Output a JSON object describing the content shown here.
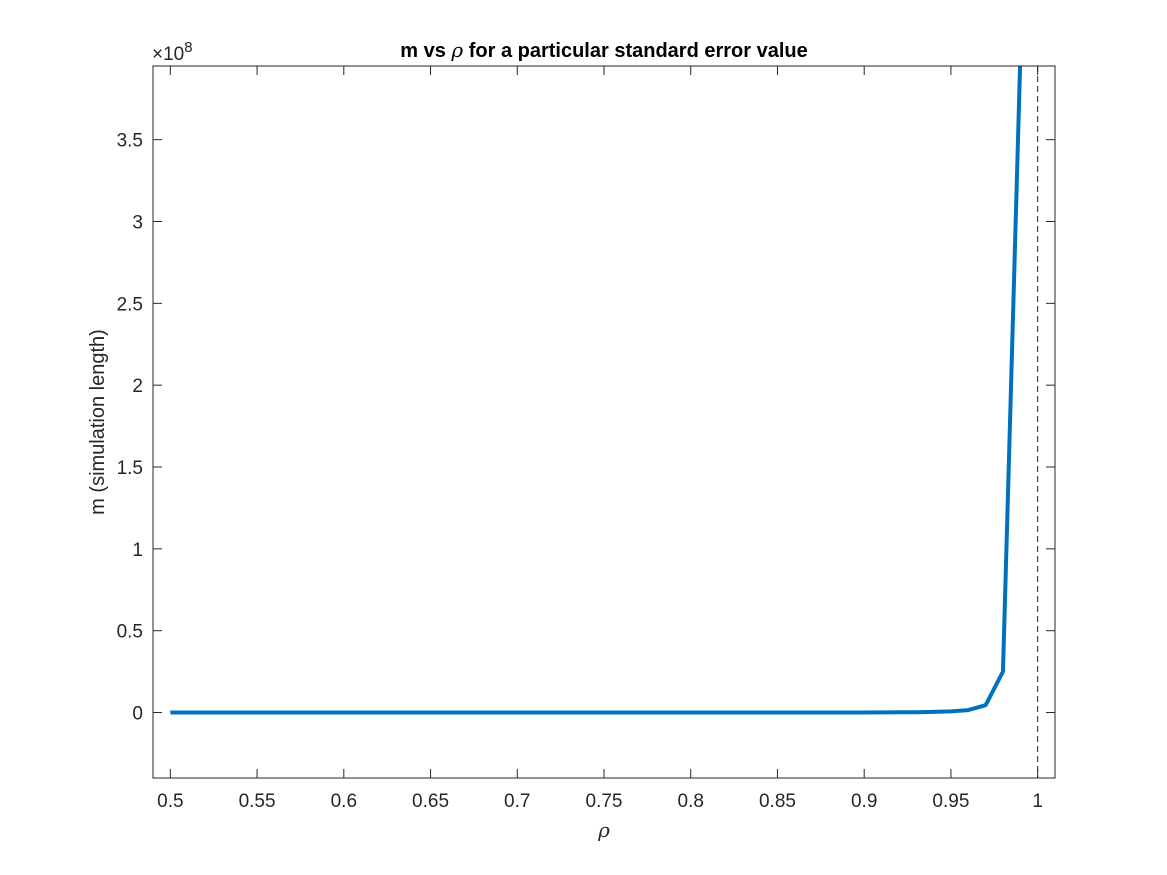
{
  "chart_data": {
    "type": "line",
    "title_pre": "m vs ",
    "title_symbol": "ρ",
    "title_post": " for a particular standard error value",
    "xlabel": "ρ",
    "ylabel": "m (simulation length)",
    "y_exponent_prefix": "×10",
    "y_exponent_power": "8",
    "xlim": [
      0.49,
      1.01
    ],
    "ylim": [
      -0.4,
      3.95
    ],
    "y_scale": 100000000,
    "x_ticks": [
      0.5,
      0.55,
      0.6,
      0.65,
      0.7,
      0.75,
      0.8,
      0.85,
      0.9,
      0.95,
      1
    ],
    "x_tick_labels": [
      "0.5",
      "0.55",
      "0.6",
      "0.65",
      "0.7",
      "0.75",
      "0.8",
      "0.85",
      "0.9",
      "0.95",
      "1"
    ],
    "y_ticks": [
      0,
      0.5,
      1,
      1.5,
      2,
      2.5,
      3,
      3.5
    ],
    "y_tick_labels": [
      "0",
      "0.5",
      "1",
      "1.5",
      "2",
      "2.5",
      "3",
      "3.5"
    ],
    "grid": false,
    "series": [
      {
        "color": "#0072BD",
        "x": [
          0.5,
          0.6,
          0.7,
          0.8,
          0.85,
          0.88,
          0.9,
          0.91,
          0.92,
          0.93,
          0.94,
          0.95,
          0.96,
          0.97,
          0.98,
          0.99
        ],
        "y": [
          0,
          0,
          0,
          0,
          0,
          0,
          0.0005,
          0.001,
          0.0015,
          0.002,
          0.004,
          0.007,
          0.015,
          0.045,
          0.25,
          4.0
        ]
      }
    ],
    "reference_line": {
      "x": 1,
      "style": "dashed",
      "color": "#262626"
    }
  }
}
